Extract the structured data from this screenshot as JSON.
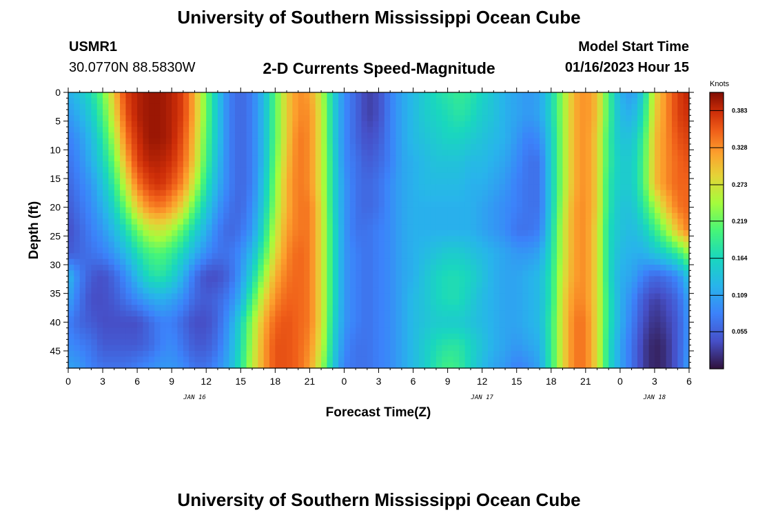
{
  "page": {
    "title_top": "University of Southern Mississippi Ocean Cube",
    "title_bottom": "University of Southern Mississippi Ocean Cube",
    "station_id": "USMR1",
    "station_coords": "30.0770N  88.5830W",
    "plot_title": "2-D Currents Speed-Magnitude",
    "model_start_label": "Model Start Time",
    "model_start_value": "01/16/2023 Hour 15"
  },
  "chart_data": {
    "type": "heatmap",
    "title": "2-D Currents Speed-Magnitude",
    "xlabel": "Forecast Time(Z)",
    "ylabel": "Depth (ft)",
    "x_tick_labels": [
      "0",
      "3",
      "6",
      "9",
      "12",
      "15",
      "18",
      "21",
      "0",
      "3",
      "6",
      "9",
      "12",
      "15",
      "18",
      "21",
      "0",
      "3",
      "6"
    ],
    "x_range_hours": [
      0,
      54
    ],
    "date_labels": [
      {
        "text": "JAN 16",
        "hour": 11
      },
      {
        "text": "JAN 17",
        "hour": 36
      },
      {
        "text": "JAN 18",
        "hour": 51
      }
    ],
    "y_tick_labels": [
      "0",
      "5",
      "10",
      "15",
      "20",
      "25",
      "30",
      "35",
      "40",
      "45"
    ],
    "y_range": [
      0,
      48
    ],
    "y_inverted": true,
    "colorbar": {
      "title": "Knots",
      "labels": [
        "0.383",
        "0.328",
        "0.273",
        "0.219",
        "0.164",
        "0.109",
        "0.055"
      ],
      "range": [
        0,
        0.41
      ]
    },
    "columns_hours": [
      0,
      1,
      2,
      3,
      4,
      5,
      6,
      7,
      8,
      9,
      10,
      11,
      12,
      13,
      14,
      15,
      16,
      17,
      18,
      19,
      20,
      21,
      22,
      23,
      24,
      25,
      26,
      27,
      28,
      29,
      30,
      31,
      32,
      33,
      34,
      35,
      36,
      37,
      38,
      39,
      40,
      41,
      42,
      43,
      44,
      45,
      46,
      47,
      48,
      49,
      50,
      51,
      52,
      53,
      54
    ],
    "rows_depth_ft": [
      0,
      4,
      8,
      12,
      16,
      20,
      24,
      28,
      32,
      36,
      40,
      44,
      48
    ],
    "speed_knots": [
      [
        0.12,
        0.14,
        0.17,
        0.22,
        0.3,
        0.37,
        0.39,
        0.4,
        0.4,
        0.39,
        0.37,
        0.31,
        0.22,
        0.14,
        0.08,
        0.06,
        0.08,
        0.13,
        0.21,
        0.29,
        0.33,
        0.32,
        0.26,
        0.16,
        0.09,
        0.06,
        0.03,
        0.04,
        0.08,
        0.11,
        0.13,
        0.15,
        0.17,
        0.18,
        0.19,
        0.18,
        0.16,
        0.14,
        0.12,
        0.11,
        0.1,
        0.11,
        0.16,
        0.24,
        0.31,
        0.33,
        0.3,
        0.2,
        0.12,
        0.1,
        0.15,
        0.28,
        0.33,
        0.37,
        0.39
      ],
      [
        0.1,
        0.12,
        0.15,
        0.2,
        0.28,
        0.36,
        0.39,
        0.4,
        0.4,
        0.39,
        0.37,
        0.31,
        0.22,
        0.14,
        0.08,
        0.06,
        0.08,
        0.13,
        0.21,
        0.29,
        0.33,
        0.33,
        0.27,
        0.16,
        0.09,
        0.06,
        0.03,
        0.04,
        0.08,
        0.11,
        0.13,
        0.15,
        0.16,
        0.17,
        0.18,
        0.17,
        0.15,
        0.14,
        0.12,
        0.11,
        0.1,
        0.11,
        0.16,
        0.24,
        0.31,
        0.33,
        0.3,
        0.2,
        0.13,
        0.12,
        0.17,
        0.29,
        0.33,
        0.37,
        0.38
      ],
      [
        0.08,
        0.1,
        0.13,
        0.18,
        0.25,
        0.34,
        0.38,
        0.4,
        0.4,
        0.39,
        0.36,
        0.3,
        0.21,
        0.14,
        0.08,
        0.06,
        0.08,
        0.13,
        0.21,
        0.29,
        0.34,
        0.33,
        0.27,
        0.16,
        0.09,
        0.06,
        0.04,
        0.05,
        0.08,
        0.11,
        0.13,
        0.14,
        0.15,
        0.16,
        0.16,
        0.15,
        0.14,
        0.13,
        0.12,
        0.1,
        0.08,
        0.09,
        0.15,
        0.24,
        0.31,
        0.33,
        0.29,
        0.19,
        0.14,
        0.14,
        0.19,
        0.3,
        0.33,
        0.36,
        0.37
      ],
      [
        0.07,
        0.09,
        0.12,
        0.16,
        0.22,
        0.31,
        0.37,
        0.39,
        0.39,
        0.38,
        0.35,
        0.29,
        0.2,
        0.13,
        0.08,
        0.06,
        0.08,
        0.13,
        0.22,
        0.3,
        0.34,
        0.33,
        0.27,
        0.17,
        0.09,
        0.07,
        0.05,
        0.06,
        0.08,
        0.11,
        0.12,
        0.13,
        0.14,
        0.14,
        0.14,
        0.13,
        0.13,
        0.12,
        0.11,
        0.09,
        0.07,
        0.07,
        0.15,
        0.24,
        0.31,
        0.33,
        0.29,
        0.19,
        0.15,
        0.15,
        0.2,
        0.3,
        0.33,
        0.35,
        0.36
      ],
      [
        0.06,
        0.08,
        0.1,
        0.14,
        0.19,
        0.27,
        0.34,
        0.37,
        0.38,
        0.36,
        0.33,
        0.26,
        0.18,
        0.12,
        0.08,
        0.06,
        0.08,
        0.14,
        0.23,
        0.31,
        0.34,
        0.33,
        0.27,
        0.17,
        0.1,
        0.07,
        0.06,
        0.07,
        0.09,
        0.11,
        0.12,
        0.13,
        0.13,
        0.13,
        0.13,
        0.12,
        0.12,
        0.11,
        0.1,
        0.08,
        0.07,
        0.07,
        0.15,
        0.24,
        0.31,
        0.33,
        0.29,
        0.18,
        0.15,
        0.15,
        0.2,
        0.3,
        0.33,
        0.35,
        0.35
      ],
      [
        0.05,
        0.07,
        0.09,
        0.12,
        0.16,
        0.22,
        0.29,
        0.33,
        0.34,
        0.32,
        0.28,
        0.21,
        0.15,
        0.1,
        0.07,
        0.06,
        0.09,
        0.15,
        0.24,
        0.31,
        0.34,
        0.34,
        0.28,
        0.17,
        0.1,
        0.07,
        0.06,
        0.07,
        0.09,
        0.11,
        0.12,
        0.12,
        0.12,
        0.12,
        0.12,
        0.12,
        0.11,
        0.1,
        0.09,
        0.08,
        0.07,
        0.07,
        0.15,
        0.25,
        0.32,
        0.33,
        0.29,
        0.18,
        0.14,
        0.14,
        0.18,
        0.24,
        0.3,
        0.34,
        0.35
      ],
      [
        0.04,
        0.06,
        0.08,
        0.1,
        0.13,
        0.17,
        0.22,
        0.26,
        0.27,
        0.25,
        0.21,
        0.16,
        0.12,
        0.08,
        0.06,
        0.07,
        0.1,
        0.17,
        0.26,
        0.32,
        0.34,
        0.34,
        0.28,
        0.18,
        0.1,
        0.07,
        0.07,
        0.08,
        0.09,
        0.11,
        0.12,
        0.12,
        0.12,
        0.12,
        0.12,
        0.12,
        0.11,
        0.1,
        0.09,
        0.07,
        0.07,
        0.08,
        0.16,
        0.26,
        0.32,
        0.33,
        0.28,
        0.17,
        0.14,
        0.13,
        0.15,
        0.19,
        0.24,
        0.3,
        0.34
      ],
      [
        0.05,
        0.06,
        0.07,
        0.08,
        0.1,
        0.13,
        0.17,
        0.2,
        0.21,
        0.19,
        0.16,
        0.12,
        0.09,
        0.07,
        0.07,
        0.09,
        0.13,
        0.2,
        0.28,
        0.33,
        0.35,
        0.34,
        0.28,
        0.18,
        0.1,
        0.08,
        0.07,
        0.08,
        0.09,
        0.11,
        0.12,
        0.13,
        0.14,
        0.15,
        0.15,
        0.14,
        0.13,
        0.12,
        0.11,
        0.1,
        0.1,
        0.11,
        0.17,
        0.26,
        0.32,
        0.33,
        0.28,
        0.17,
        0.13,
        0.12,
        0.12,
        0.14,
        0.16,
        0.19,
        0.24
      ],
      [
        0.13,
        0.08,
        0.05,
        0.04,
        0.06,
        0.09,
        0.13,
        0.17,
        0.18,
        0.16,
        0.12,
        0.07,
        0.04,
        0.04,
        0.06,
        0.1,
        0.16,
        0.24,
        0.31,
        0.34,
        0.35,
        0.34,
        0.28,
        0.18,
        0.1,
        0.08,
        0.07,
        0.08,
        0.09,
        0.11,
        0.12,
        0.14,
        0.16,
        0.17,
        0.17,
        0.16,
        0.14,
        0.12,
        0.11,
        0.11,
        0.12,
        0.13,
        0.18,
        0.27,
        0.32,
        0.33,
        0.28,
        0.17,
        0.12,
        0.11,
        0.08,
        0.06,
        0.07,
        0.09,
        0.14
      ],
      [
        0.11,
        0.07,
        0.04,
        0.04,
        0.05,
        0.07,
        0.09,
        0.11,
        0.12,
        0.11,
        0.09,
        0.06,
        0.05,
        0.06,
        0.08,
        0.12,
        0.2,
        0.28,
        0.33,
        0.35,
        0.35,
        0.34,
        0.28,
        0.18,
        0.1,
        0.08,
        0.07,
        0.08,
        0.09,
        0.11,
        0.13,
        0.14,
        0.16,
        0.17,
        0.17,
        0.15,
        0.13,
        0.12,
        0.11,
        0.11,
        0.12,
        0.13,
        0.18,
        0.28,
        0.33,
        0.33,
        0.28,
        0.18,
        0.12,
        0.09,
        0.05,
        0.03,
        0.04,
        0.06,
        0.11
      ],
      [
        0.08,
        0.06,
        0.05,
        0.04,
        0.04,
        0.04,
        0.04,
        0.06,
        0.08,
        0.08,
        0.06,
        0.04,
        0.04,
        0.06,
        0.1,
        0.16,
        0.24,
        0.31,
        0.35,
        0.36,
        0.35,
        0.34,
        0.28,
        0.17,
        0.1,
        0.08,
        0.07,
        0.08,
        0.09,
        0.11,
        0.13,
        0.14,
        0.15,
        0.15,
        0.15,
        0.14,
        0.13,
        0.12,
        0.11,
        0.11,
        0.12,
        0.13,
        0.19,
        0.28,
        0.34,
        0.34,
        0.28,
        0.18,
        0.12,
        0.08,
        0.04,
        0.02,
        0.03,
        0.05,
        0.1
      ],
      [
        0.09,
        0.08,
        0.07,
        0.05,
        0.05,
        0.05,
        0.05,
        0.06,
        0.08,
        0.09,
        0.07,
        0.05,
        0.05,
        0.07,
        0.11,
        0.17,
        0.25,
        0.32,
        0.36,
        0.36,
        0.35,
        0.33,
        0.27,
        0.16,
        0.09,
        0.07,
        0.07,
        0.08,
        0.09,
        0.11,
        0.13,
        0.15,
        0.17,
        0.18,
        0.18,
        0.16,
        0.14,
        0.12,
        0.11,
        0.1,
        0.11,
        0.12,
        0.19,
        0.28,
        0.34,
        0.34,
        0.28,
        0.17,
        0.11,
        0.07,
        0.03,
        0.01,
        0.02,
        0.05,
        0.1
      ],
      [
        0.11,
        0.1,
        0.08,
        0.07,
        0.07,
        0.07,
        0.08,
        0.09,
        0.1,
        0.1,
        0.09,
        0.07,
        0.07,
        0.09,
        0.12,
        0.18,
        0.26,
        0.32,
        0.36,
        0.36,
        0.35,
        0.32,
        0.25,
        0.15,
        0.08,
        0.07,
        0.07,
        0.08,
        0.09,
        0.11,
        0.13,
        0.15,
        0.18,
        0.2,
        0.19,
        0.16,
        0.13,
        0.11,
        0.1,
        0.08,
        0.09,
        0.11,
        0.19,
        0.28,
        0.34,
        0.34,
        0.28,
        0.17,
        0.11,
        0.07,
        0.03,
        0.01,
        0.02,
        0.05,
        0.11
      ]
    ]
  }
}
